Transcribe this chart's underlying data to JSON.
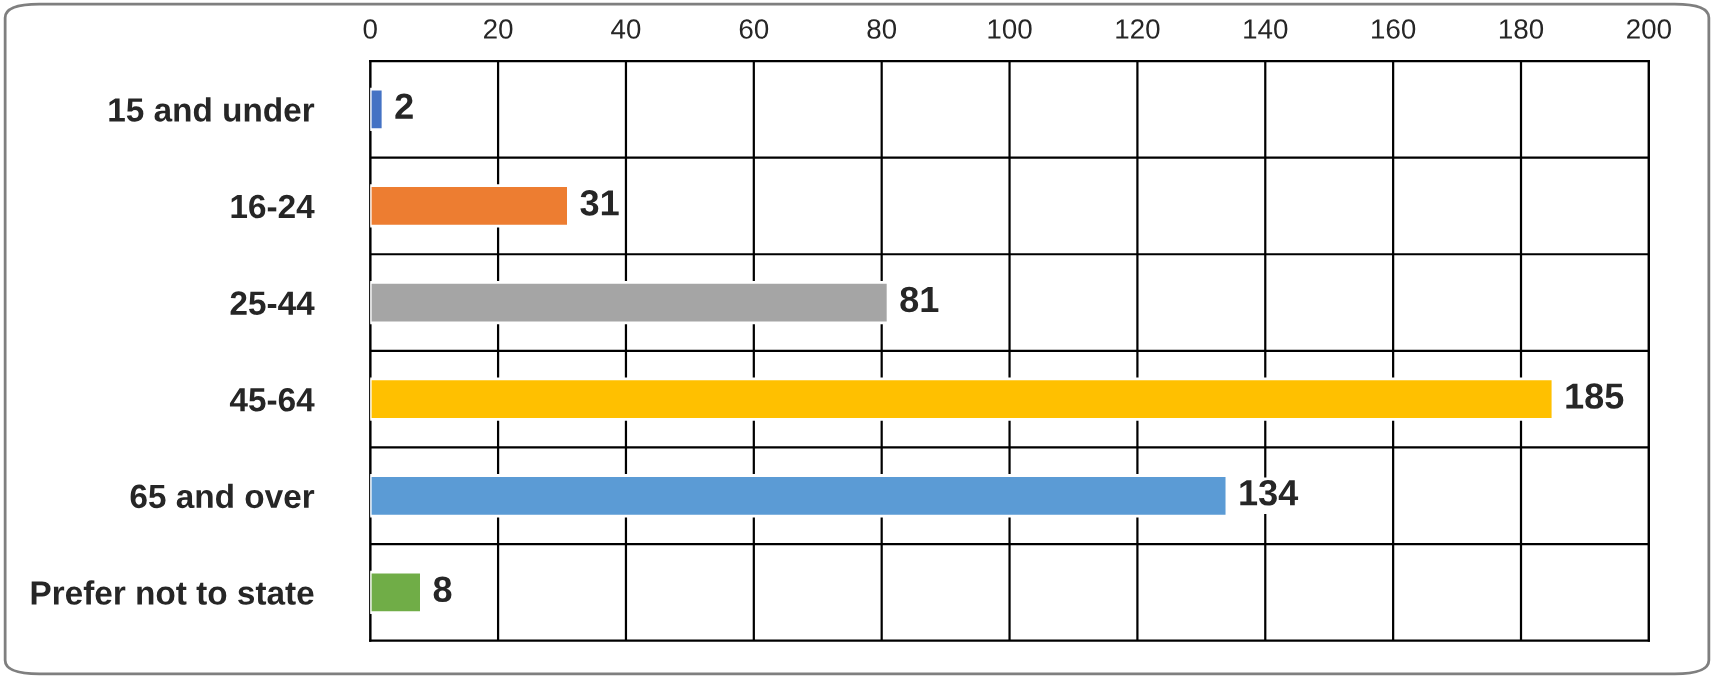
{
  "chart_data": {
    "type": "bar",
    "orientation": "horizontal",
    "categories": [
      "15 and under",
      "16-24",
      "25-44",
      "45-64",
      "65 and over",
      "Prefer not to state"
    ],
    "values": [
      2,
      31,
      81,
      185,
      134,
      8
    ],
    "colors": [
      "#4472c4",
      "#ed7d31",
      "#a5a5a5",
      "#ffc000",
      "#5b9bd5",
      "#70ad47"
    ],
    "xlim": [
      0,
      200
    ],
    "xticks": [
      0,
      20,
      40,
      60,
      80,
      100,
      120,
      140,
      160,
      180,
      200
    ],
    "grid": true,
    "data_labels": true
  }
}
